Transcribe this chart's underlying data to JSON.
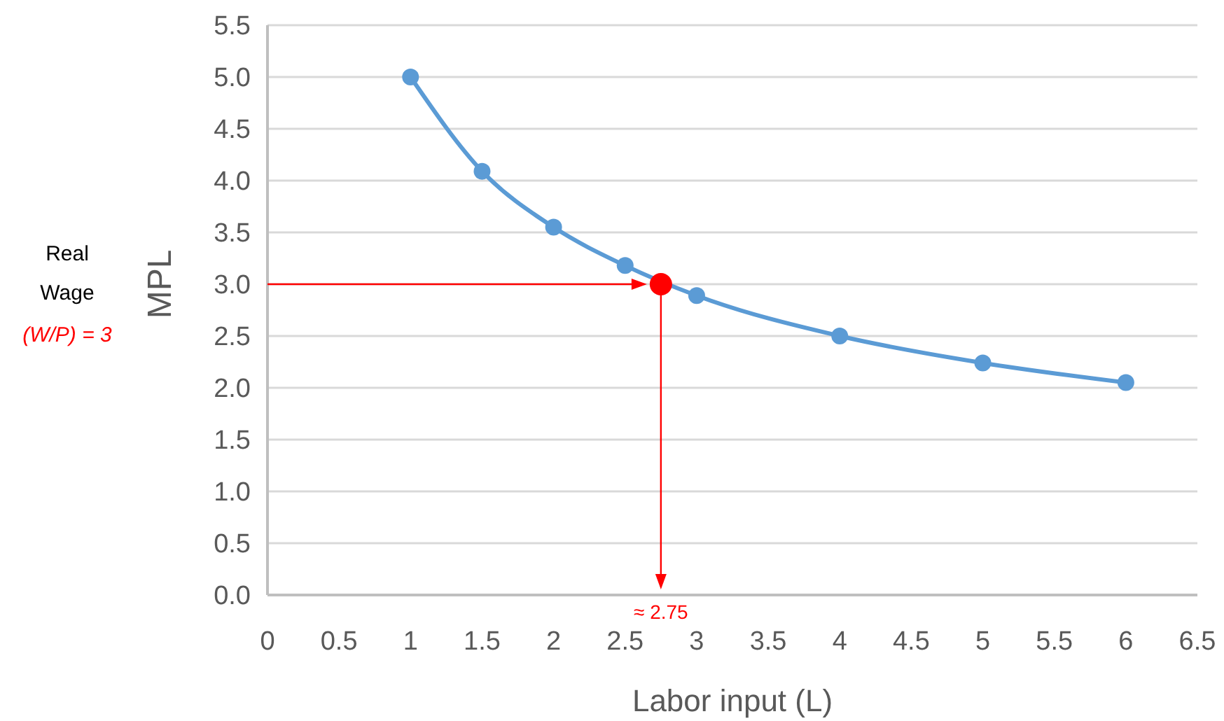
{
  "chart_data": {
    "type": "line",
    "xlabel": "Labor input (L)",
    "ylabel": "MPL",
    "xlim": [
      0,
      6.5
    ],
    "xticks": [
      0,
      0.5,
      1,
      1.5,
      2,
      2.5,
      3,
      3.5,
      4,
      4.5,
      5,
      5.5,
      6,
      6.5
    ],
    "ylim": [
      0,
      5.5
    ],
    "yticks": [
      {
        "value": 0,
        "label": "0.0"
      },
      {
        "value": 0.5,
        "label": "0.5"
      },
      {
        "value": 1,
        "label": "1.0"
      },
      {
        "value": 1.5,
        "label": "1.5"
      },
      {
        "value": 2,
        "label": "2.0"
      },
      {
        "value": 2.5,
        "label": "2.5"
      },
      {
        "value": 3,
        "label": "3.0"
      },
      {
        "value": 3.5,
        "label": "3.5"
      },
      {
        "value": 4,
        "label": "4.0"
      },
      {
        "value": 4.5,
        "label": "4.5"
      },
      {
        "value": 5,
        "label": "5.0"
      },
      {
        "value": 5.5,
        "label": "5.5"
      }
    ],
    "grid": "y",
    "marker": "circle",
    "line_style": "solid",
    "series": [
      {
        "color": "#5b9bd5",
        "x": [
          1,
          1.5,
          2,
          2.5,
          3,
          4,
          5,
          6
        ],
        "values": [
          5.0,
          4.09,
          3.55,
          3.18,
          2.89,
          2.5,
          2.24,
          2.05
        ]
      },
      {
        "type": "scatter",
        "color": "#ff0000",
        "x": [
          2.75
        ],
        "values": [
          3.0
        ]
      }
    ],
    "annotations": [
      "Real Wage",
      "(W/P) = 3",
      {
        "text": "≈ 2.75",
        "x": 2.75,
        "y": 3
      }
    ]
  }
}
